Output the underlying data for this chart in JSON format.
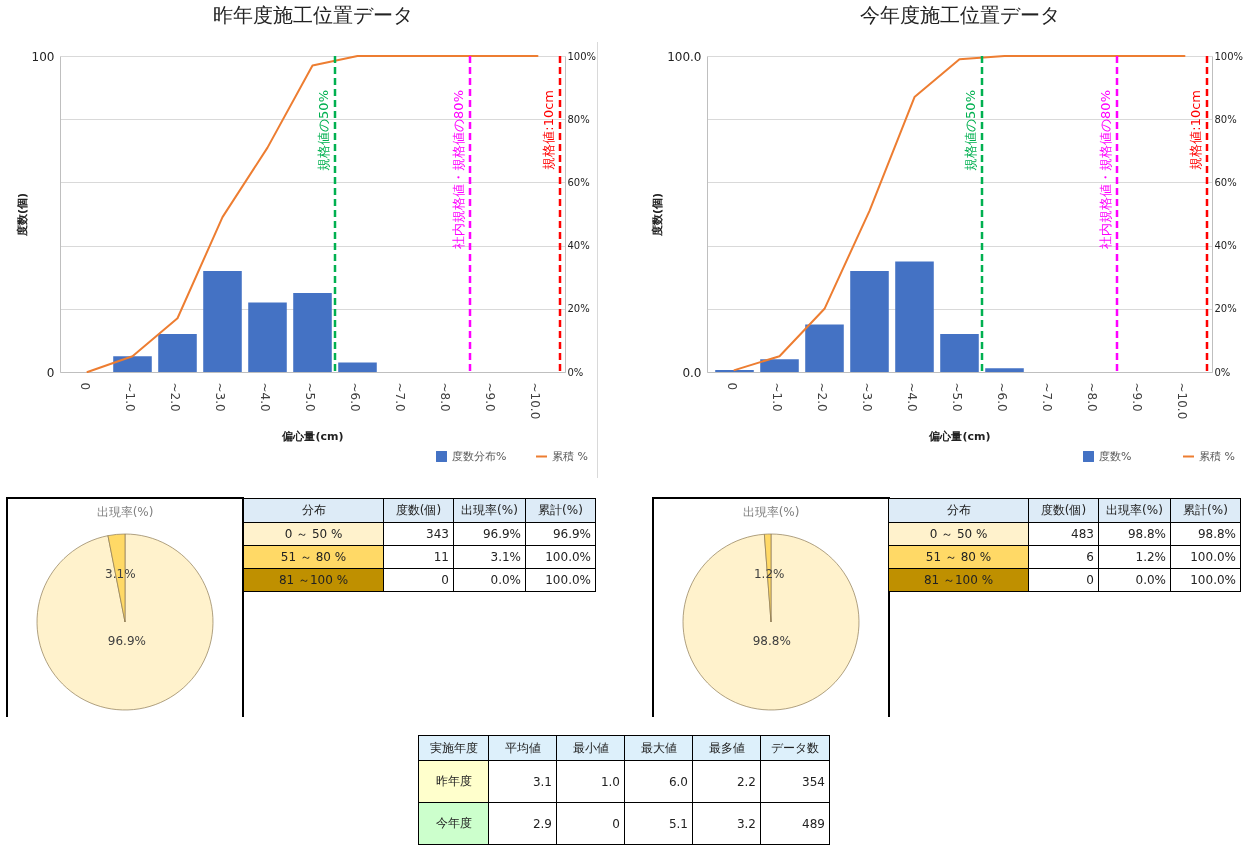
{
  "chart_data": [
    {
      "type": "bar",
      "title": "昨年度施工位置データ",
      "xlabel": "偏心量(cm)",
      "ylabel": "度数(個)",
      "x": [
        0,
        1,
        2,
        3,
        4,
        5,
        6,
        7,
        8,
        9,
        10
      ],
      "xlim": [
        -0.5,
        10.5
      ],
      "xticks": [
        0,
        {
          "value": 1,
          "label": "~1.0"
        },
        {
          "value": 2,
          "label": "~2.0"
        },
        {
          "value": 3,
          "label": "~3.0"
        },
        {
          "value": 4,
          "label": "~4.0"
        },
        {
          "value": 5,
          "label": "~5.0"
        },
        {
          "value": 6,
          "label": "~6.0"
        },
        {
          "value": 7,
          "label": "~7.0"
        },
        {
          "value": 8,
          "label": "~8.0"
        },
        {
          "value": 9,
          "label": "~9.0"
        },
        {
          "value": 10,
          "label": "~10.0"
        }
      ],
      "ylim": [
        0,
        100
      ],
      "yticks": [
        0,
        {
          "value": 20,
          "label": null
        },
        {
          "value": 40,
          "label": null
        },
        {
          "value": 60,
          "label": null
        },
        {
          "value": 80,
          "label": null
        },
        100
      ],
      "y2lim": [
        0,
        100
      ],
      "y2ticks": [
        {
          "value": 0,
          "label": "0%"
        },
        {
          "value": 20,
          "label": "20%"
        },
        {
          "value": 40,
          "label": "40%"
        },
        {
          "value": 60,
          "label": "60%"
        },
        {
          "value": 80,
          "label": "80%"
        },
        {
          "value": 100,
          "label": "100%"
        }
      ],
      "grid": "y",
      "legend": "bottom right",
      "series": [
        {
          "name": "度数分布%",
          "type": "bar",
          "color": "#4472c4",
          "values": [
            0,
            5,
            12,
            32,
            22,
            25,
            3,
            0,
            0,
            0,
            0
          ]
        },
        {
          "name": "累積 %",
          "type": "line",
          "axis": "y2",
          "color": "#ed7d31",
          "values": [
            0,
            5,
            17,
            49,
            71,
            97,
            100,
            100,
            100,
            100,
            100
          ]
        }
      ],
      "ref_lines": [
        {
          "axis": "x",
          "value": 5.5,
          "label": "規格値の50%",
          "color": "#00b050",
          "line_style": "dashed"
        },
        {
          "axis": "x",
          "value": 8.5,
          "label": "社内規格値・規格値の80%",
          "color": "#ff00ff",
          "line_style": "dashed"
        },
        {
          "axis": "x",
          "value": 10.5,
          "label": "規格値:10cm",
          "color": "#ff0000",
          "line_style": "dashed"
        }
      ]
    },
    {
      "type": "pie",
      "title": "出現率(%)",
      "categories": [
        null,
        null
      ],
      "values": [
        96.9,
        3.1
      ],
      "colors": [
        "#fff2cc",
        "#ffd966"
      ],
      "value_labels": [
        "96.9%",
        "3.1%"
      ]
    },
    {
      "type": "other",
      "categories": [
        "分布",
        "度数(個)",
        "出現率(%)",
        "累計(%)"
      ],
      "annotations": [
        "0 ～ 50 %",
        "343",
        "96.9%",
        "96.9%",
        "51 ～ 80 %",
        "11",
        "3.1%",
        "100.0%",
        "81 ～100 %",
        "0",
        "0.0%",
        "100.0%"
      ],
      "colors": [
        "#ddebf7",
        "#ddebf7",
        "#ddebf7",
        "#ddebf7",
        "#fff2cc",
        null,
        null,
        null,
        "#ffd966",
        null,
        null,
        null,
        "#bf9000",
        null,
        null,
        null
      ]
    },
    {
      "type": "bar",
      "title": "今年度施工位置データ",
      "xlabel": "偏心量(cm)",
      "ylabel": "度数(個)",
      "x": [
        0,
        1,
        2,
        3,
        4,
        5,
        6,
        7,
        8,
        9,
        10
      ],
      "xlim": [
        -0.5,
        10.5
      ],
      "xticks": [
        0,
        {
          "value": 1,
          "label": "~1.0"
        },
        {
          "value": 2,
          "label": "~2.0"
        },
        {
          "value": 3,
          "label": "~3.0"
        },
        {
          "value": 4,
          "label": "~4.0"
        },
        {
          "value": 5,
          "label": "~5.0"
        },
        {
          "value": 6,
          "label": "~6.0"
        },
        {
          "value": 7,
          "label": "~7.0"
        },
        {
          "value": 8,
          "label": "~8.0"
        },
        {
          "value": 9,
          "label": "~9.0"
        },
        {
          "value": 10,
          "label": "~10.0"
        }
      ],
      "ylim": [
        0,
        100
      ],
      "yticks": [
        {
          "value": 0,
          "label": "0.0"
        },
        {
          "value": 20,
          "label": null
        },
        {
          "value": 40,
          "label": null
        },
        {
          "value": 60,
          "label": null
        },
        {
          "value": 80,
          "label": null
        },
        {
          "value": 100,
          "label": "100.0"
        }
      ],
      "y2lim": [
        0,
        100
      ],
      "y2ticks": [
        {
          "value": 0,
          "label": "0%"
        },
        {
          "value": 20,
          "label": "20%"
        },
        {
          "value": 40,
          "label": "40%"
        },
        {
          "value": 60,
          "label": "60%"
        },
        {
          "value": 80,
          "label": "80%"
        },
        {
          "value": 100,
          "label": "100%"
        }
      ],
      "grid": "y",
      "legend": "bottom right",
      "series": [
        {
          "name": "度数%",
          "type": "bar",
          "color": "#4472c4",
          "values": [
            0.6,
            4,
            15,
            32,
            35,
            12,
            1.2,
            0,
            0,
            0,
            0
          ]
        },
        {
          "name": "累積 %",
          "type": "line",
          "axis": "y2",
          "color": "#ed7d31",
          "values": [
            0.6,
            5,
            20,
            51,
            87,
            99,
            100,
            100,
            100,
            100,
            100
          ]
        }
      ],
      "ref_lines": [
        {
          "axis": "x",
          "value": 5.5,
          "label": "規格値の50%",
          "color": "#00b050",
          "line_style": "dashed"
        },
        {
          "axis": "x",
          "value": 8.5,
          "label": "社内規格値・規格値の80%",
          "color": "#ff00ff",
          "line_style": "dashed"
        },
        {
          "axis": "x",
          "value": 10.5,
          "label": "規格値:10cm",
          "color": "#ff0000",
          "line_style": "dashed"
        }
      ]
    },
    {
      "type": "pie",
      "title": "出現率(%)",
      "categories": [
        null,
        null
      ],
      "values": [
        98.8,
        1.2
      ],
      "colors": [
        "#fff2cc",
        "#ffd966"
      ],
      "value_labels": [
        "98.8%",
        "1.2%"
      ]
    },
    {
      "type": "other",
      "categories": [
        "分布",
        "度数(個)",
        "出現率(%)",
        "累計(%)"
      ],
      "annotations": [
        "0 ～ 50 %",
        "483",
        "98.8%",
        "98.8%",
        "51 ～ 80 %",
        "6",
        "1.2%",
        "100.0%",
        "81 ～100 %",
        "0",
        "0.0%",
        "100.0%"
      ],
      "colors": [
        "#ddebf7",
        "#ddebf7",
        "#ddebf7",
        "#ddebf7",
        "#fff2cc",
        null,
        null,
        null,
        "#ffd966",
        null,
        null,
        null,
        "#bf9000",
        null,
        null,
        null
      ]
    },
    {
      "type": "other",
      "categories": [
        "実施年度",
        "平均値",
        "最小値",
        "最大値",
        "最多値",
        "データ数"
      ],
      "annotations": [
        "昨年度",
        "3.1",
        "1.0",
        "6.0",
        "2.2",
        "354",
        "今年度",
        "2.9",
        "0",
        "5.1",
        "3.2",
        "489"
      ],
      "colors": [
        "#ddf0fb",
        "#ddf0fb",
        "#ddf0fb",
        "#ddf0fb",
        "#ddf0fb",
        "#ddf0fb",
        "#ffffcc",
        null,
        null,
        null,
        null,
        null,
        "#ccffcc",
        null,
        null,
        null,
        null,
        null
      ]
    }
  ]
}
